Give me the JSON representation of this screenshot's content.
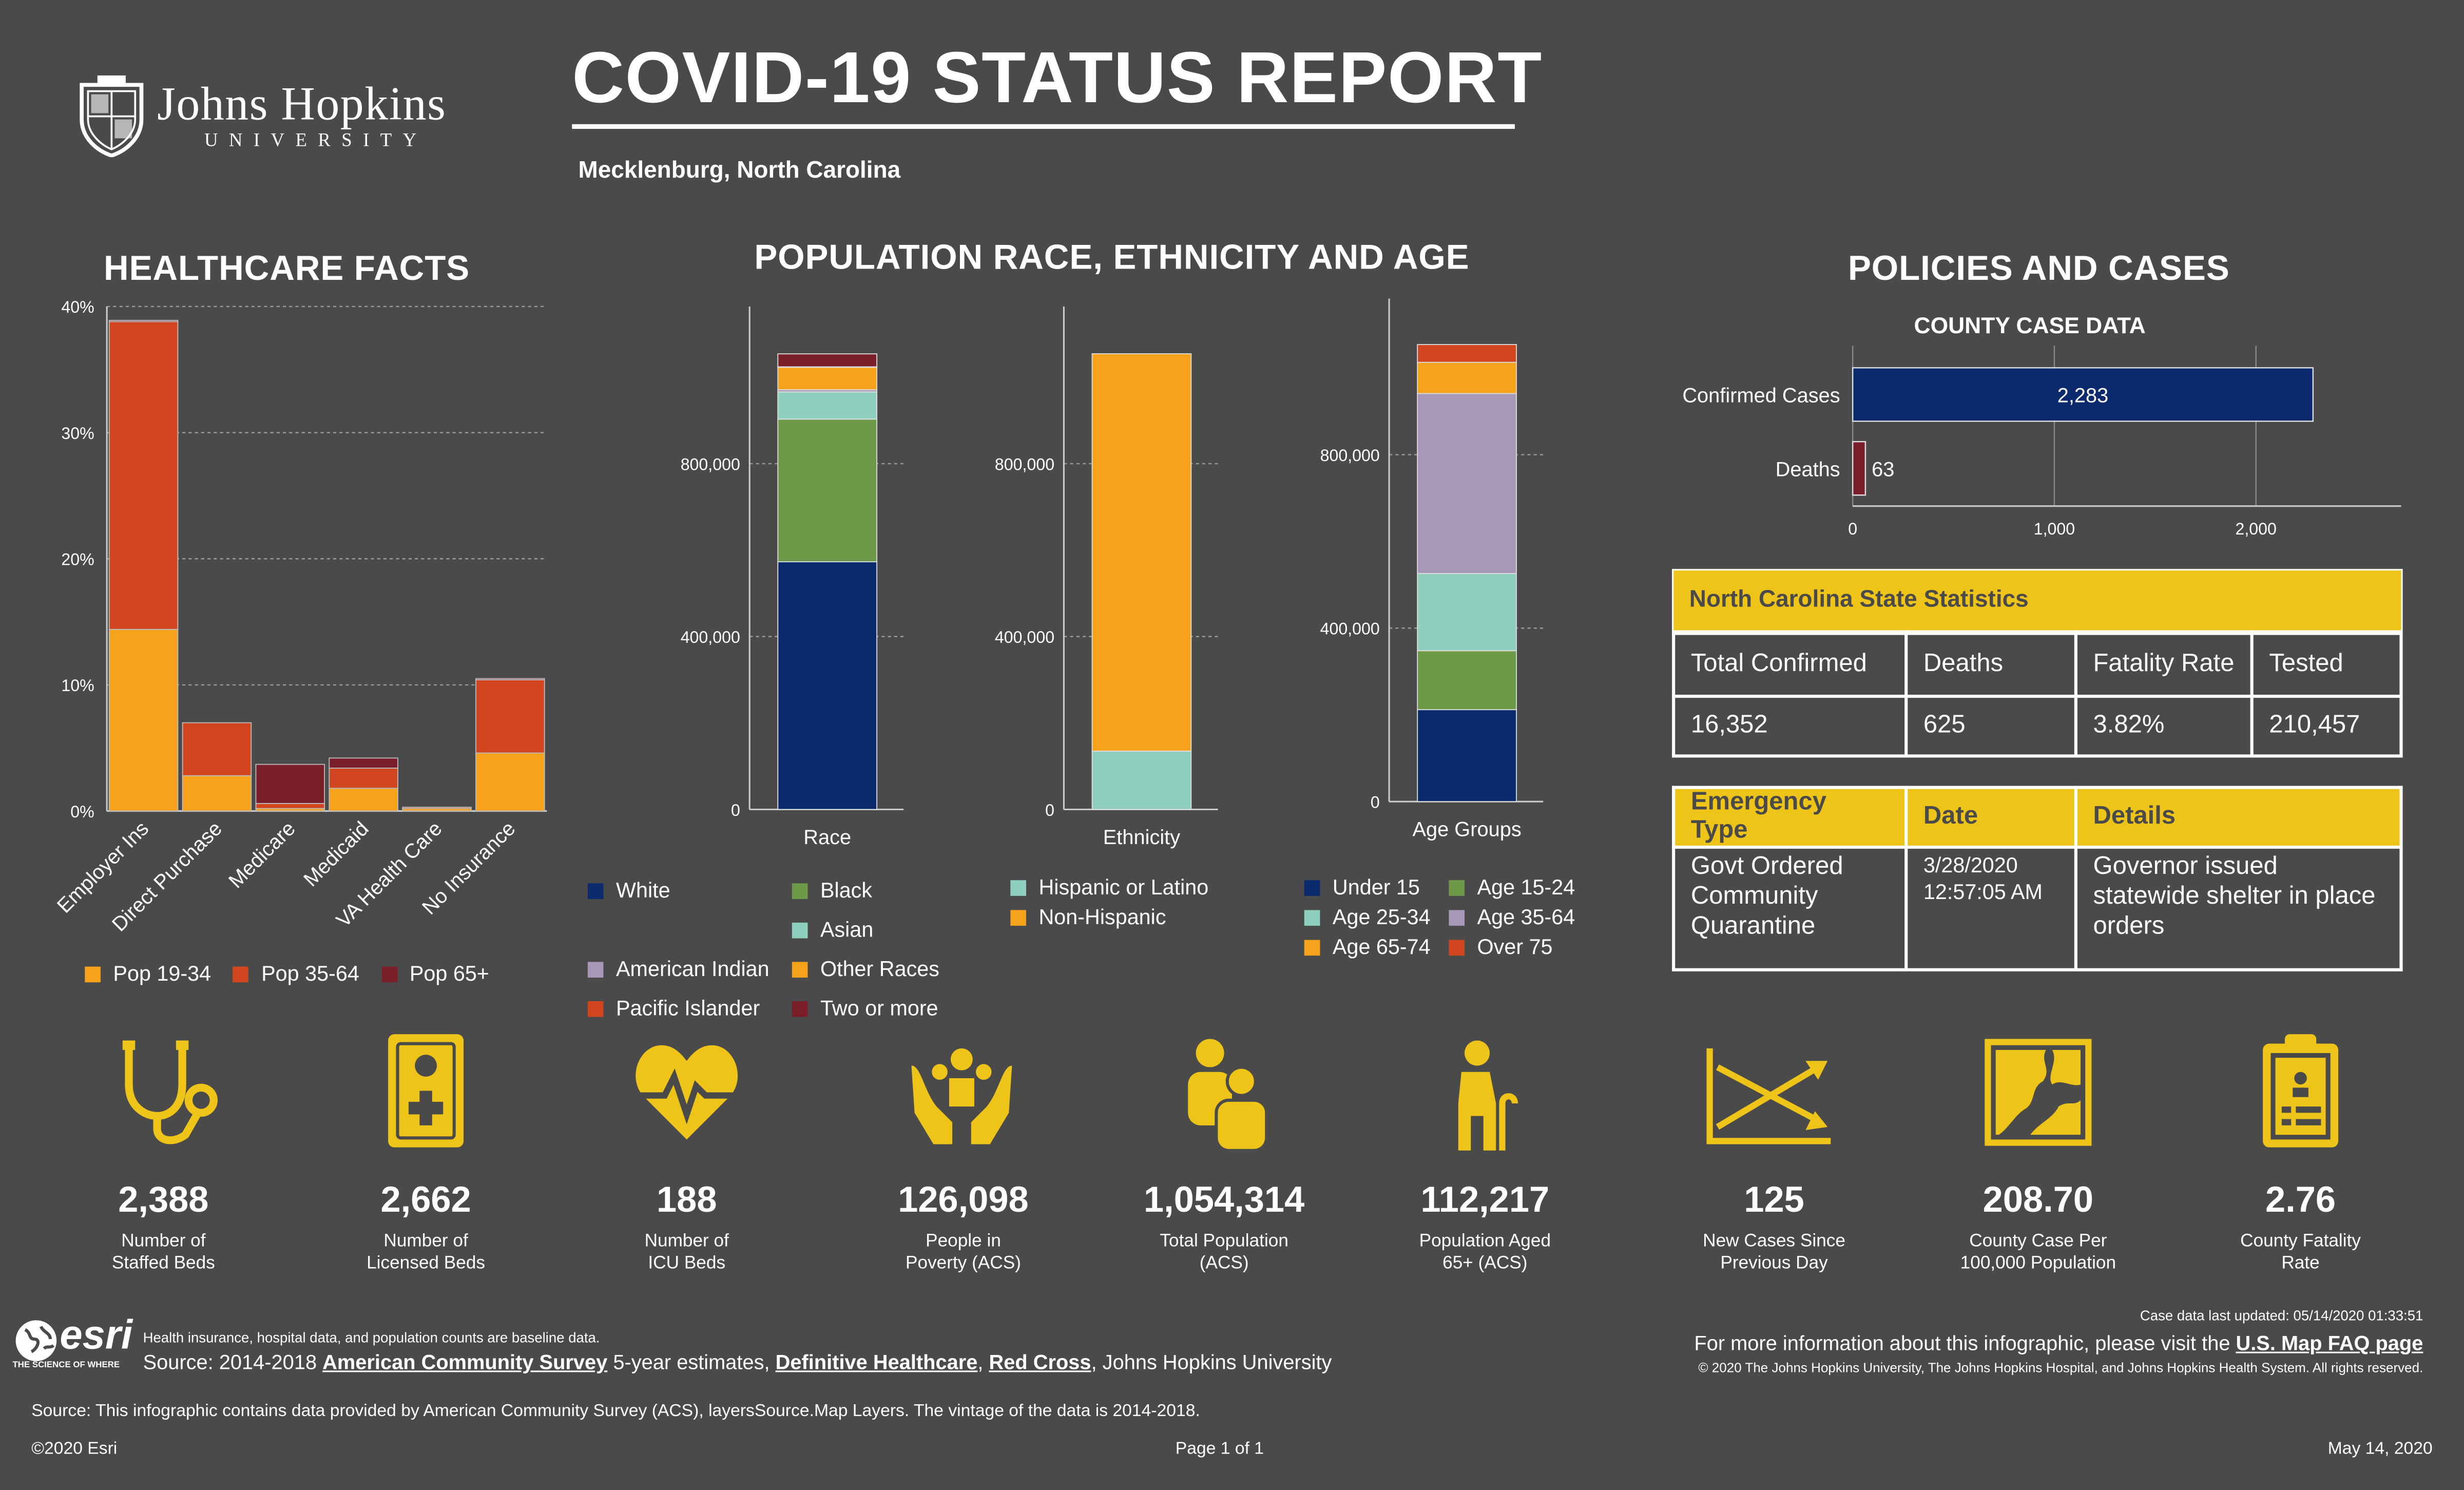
{
  "header": {
    "org_name": "Johns Hopkins",
    "org_sub": "UNIVERSITY",
    "title": "COVID-19 STATUS REPORT",
    "location": "Mecklenburg, North Carolina"
  },
  "sections": {
    "healthcare": "HEALTHCARE FACTS",
    "population": "POPULATION RACE, ETHNICITY AND AGE",
    "policies": "POLICIES AND CASES"
  },
  "colors": {
    "background": "#4a4a4a",
    "accent_yellow": "#efc418",
    "navy": "#0b2a6e",
    "orange": "#f7a21b",
    "red_orange": "#d2461f",
    "dark_red": "#7a1e2a",
    "green": "#6d9a49",
    "teal": "#8fcfc0",
    "lavender": "#a997b9"
  },
  "chart_data": [
    {
      "type": "bar",
      "stacked": true,
      "name": "healthcare",
      "categories": [
        "Employer Ins",
        "Direct Purchase",
        "Medicare",
        "Medicaid",
        "VA Health Care",
        "No Insurance"
      ],
      "series": [
        {
          "name": "Pop 19-34",
          "color": "#f7a21b",
          "values": [
            14.4,
            2.8,
            0.2,
            1.8,
            0.2,
            4.6
          ]
        },
        {
          "name": "Pop 35-64",
          "color": "#d2461f",
          "values": [
            24.4,
            4.2,
            0.4,
            1.6,
            0.1,
            5.8
          ]
        },
        {
          "name": "Pop 65+",
          "color": "#7a1e2a",
          "values": [
            0.1,
            0.0,
            3.1,
            0.8,
            0.0,
            0.1
          ]
        }
      ],
      "yticks": [
        "0%",
        "10%",
        "20%",
        "30%",
        "40%"
      ],
      "ylim": [
        0,
        40
      ],
      "grid": true,
      "legend": "bottom"
    },
    {
      "type": "bar",
      "stacked": true,
      "name": "race",
      "xlabel": "Race",
      "categories": [
        "Race"
      ],
      "series": [
        {
          "name": "White",
          "color": "#0b2a6e",
          "values": [
            573000
          ]
        },
        {
          "name": "Black",
          "color": "#6d9a49",
          "values": [
            330000
          ]
        },
        {
          "name": "Asian",
          "color": "#8fcfc0",
          "values": [
            63000
          ]
        },
        {
          "name": "American Indian",
          "color": "#a997b9",
          "values": [
            5000
          ]
        },
        {
          "name": "Other Races",
          "color": "#f7a21b",
          "values": [
            52000
          ]
        },
        {
          "name": "Pacific Islander",
          "color": "#d2461f",
          "values": [
            1000
          ]
        },
        {
          "name": "Two or more",
          "color": "#7a1e2a",
          "values": [
            30000
          ]
        }
      ],
      "yticks": [
        "0",
        "400,000",
        "800,000"
      ],
      "ylim": [
        0,
        1120000
      ],
      "legend": "bottom"
    },
    {
      "type": "bar",
      "stacked": true,
      "name": "ethnicity",
      "xlabel": "Ethnicity",
      "categories": [
        "Ethnicity"
      ],
      "series": [
        {
          "name": "Hispanic or Latino",
          "color": "#8fcfc0",
          "values": [
            135000
          ]
        },
        {
          "name": "Non-Hispanic",
          "color": "#f7a21b",
          "values": [
            919314
          ]
        }
      ],
      "yticks": [
        "0",
        "400,000",
        "800,000"
      ],
      "ylim": [
        0,
        1120000
      ],
      "legend": "bottom"
    },
    {
      "type": "bar",
      "stacked": true,
      "name": "age",
      "xlabel": "Age Groups",
      "categories": [
        "Age Groups"
      ],
      "series": [
        {
          "name": "Under 15",
          "color": "#0b2a6e",
          "values": [
            212000
          ]
        },
        {
          "name": "Age 15-24",
          "color": "#6d9a49",
          "values": [
            136000
          ]
        },
        {
          "name": "Age 25-34",
          "color": "#8fcfc0",
          "values": [
            178000
          ]
        },
        {
          "name": "Age 35-64",
          "color": "#a997b9",
          "values": [
            415000
          ]
        },
        {
          "name": "Age 65-74",
          "color": "#f7a21b",
          "values": [
            72000
          ]
        },
        {
          "name": "Over 75",
          "color": "#d2461f",
          "values": [
            41000
          ]
        }
      ],
      "yticks": [
        "0",
        "400,000",
        "800,000"
      ],
      "ylim": [
        0,
        1120000
      ],
      "legend": "bottom"
    },
    {
      "type": "bar",
      "orientation": "horizontal",
      "name": "county_cases",
      "title": "COUNTY CASE DATA",
      "categories": [
        "Confirmed Cases",
        "Deaths"
      ],
      "values": [
        2283,
        63
      ],
      "value_labels": [
        "2,283",
        "63"
      ],
      "colors": [
        "#0b2a6e",
        "#7a1e2a"
      ],
      "xticks": [
        "0",
        "1,000",
        "2,000"
      ],
      "xlim": [
        0,
        2720
      ],
      "grid": true
    }
  ],
  "healthcare_legend": [
    "Pop 19-34",
    "Pop 35-64",
    "Pop 65+"
  ],
  "race_legend": [
    "White",
    "Black",
    "Asian",
    "American Indian",
    "Other Races",
    "Pacific Islander",
    "Two or more"
  ],
  "ethnicity_legend": [
    "Hispanic or Latino",
    "Non-Hispanic"
  ],
  "age_legend": [
    "Under 15",
    "Age 15-24",
    "Age 25-34",
    "Age 35-64",
    "Age 65-74",
    "Over 75"
  ],
  "state_stats": {
    "title": "North Carolina State Statistics",
    "headers": [
      "Total Confirmed",
      "Deaths",
      "Fatality Rate",
      "Tested"
    ],
    "values": [
      "16,352",
      "625",
      "3.82%",
      "210,457"
    ]
  },
  "emergency": {
    "headers": [
      "Emergency Type",
      "Date",
      "Details"
    ],
    "type": "Govt Ordered Community Quarantine",
    "date": "3/28/2020 12:57:05 AM",
    "details": "Governor issued statewide shelter in place orders"
  },
  "kpis": [
    {
      "icon": "stethoscope-icon",
      "value": "2,388",
      "label1": "Number of",
      "label2": "Staffed Beds"
    },
    {
      "icon": "hospital-bed-icon",
      "value": "2,662",
      "label1": "Number of",
      "label2": "Licensed Beds"
    },
    {
      "icon": "heartbeat-icon",
      "value": "188",
      "label1": "Number of",
      "label2": "ICU Beds"
    },
    {
      "icon": "hands-people-icon",
      "value": "126,098",
      "label1": "People in",
      "label2": "Poverty (ACS)"
    },
    {
      "icon": "people-icon",
      "value": "1,054,314",
      "label1": "Total Population",
      "label2": "(ACS)"
    },
    {
      "icon": "elderly-person-icon",
      "value": "112,217",
      "label1": "Population Aged",
      "label2": "65+ (ACS)"
    },
    {
      "icon": "trend-arrows-icon",
      "value": "125",
      "label1": "New Cases Since",
      "label2": "Previous Day"
    },
    {
      "icon": "map-icon",
      "value": "208.70",
      "label1": "County Case Per",
      "label2": "100,000 Population"
    },
    {
      "icon": "clipboard-icon",
      "value": "2.76",
      "label1": "County Fatality",
      "label2": "Rate"
    }
  ],
  "footer": {
    "esri": "esri",
    "esri_tag": "THE SCIENCE OF WHERE",
    "baseline_note": "Health insurance, hospital data, and population counts are baseline data.",
    "source_prefix": "Source: 2014-2018 ",
    "acs": "American Community Survey",
    "five_year": " 5-year estimates, ",
    "definitive": "Definitive Healthcare",
    "comma": ", ",
    "red_cross": "Red Cross",
    "jhu": ", Johns Hopkins University",
    "last_updated": "Case data last updated: 05/14/2020 01:33:51",
    "more_info": "For more information about this infographic, please visit the ",
    "faq": "U.S. Map FAQ page",
    "copyright_jhu": "© 2020 The Johns Hopkins University, The Johns Hopkins Hospital, and Johns Hopkins Health System. All rights reserved.",
    "source_note": "Source: This infographic contains data provided by American Community Survey (ACS), layersSource.Map Layers. The vintage of the data is 2014-2018.",
    "esri_copyright": "©2020 Esri",
    "page": "Page 1 of 1",
    "date": "May 14, 2020"
  }
}
